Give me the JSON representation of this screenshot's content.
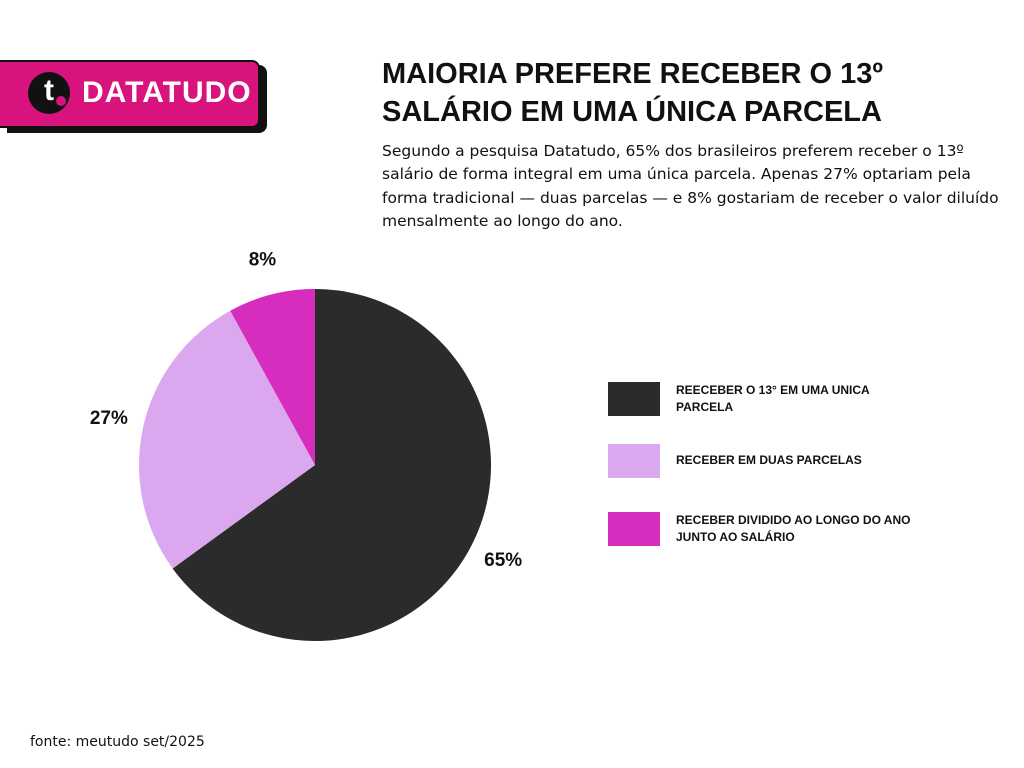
{
  "brand": "DATATUDO",
  "logo_letter": "t",
  "source": "fonte: meutudo set/2025",
  "chart_data": {
    "type": "pie",
    "title": "MAIORIA PREFERE RECEBER O 13º SALÁRIO EM UMA ÚNICA PARCELA",
    "subtitle": "Segundo a pesquisa Datatudo, 65% dos brasileiros preferem receber o 13º salário de forma integral em uma única parcela. Apenas 27% optariam pela forma tradicional — duas parcelas — e 8% gostariam de receber o valor diluído mensalmente ao longo do ano.",
    "categories": [
      "REECEBER O 13° EM UMA UNICA PARCELA",
      "RECEBER EM DUAS PARCELAS",
      "RECEBER DIVIDIDO AO LONGO DO ANO JUNTO AO SALÁRIO"
    ],
    "values": [
      65,
      27,
      8
    ],
    "value_labels": [
      "65%",
      "27%",
      "8%"
    ],
    "colors": [
      "#2b2b2b",
      "#dba8f0",
      "#d62dbf"
    ],
    "legend": "right"
  }
}
